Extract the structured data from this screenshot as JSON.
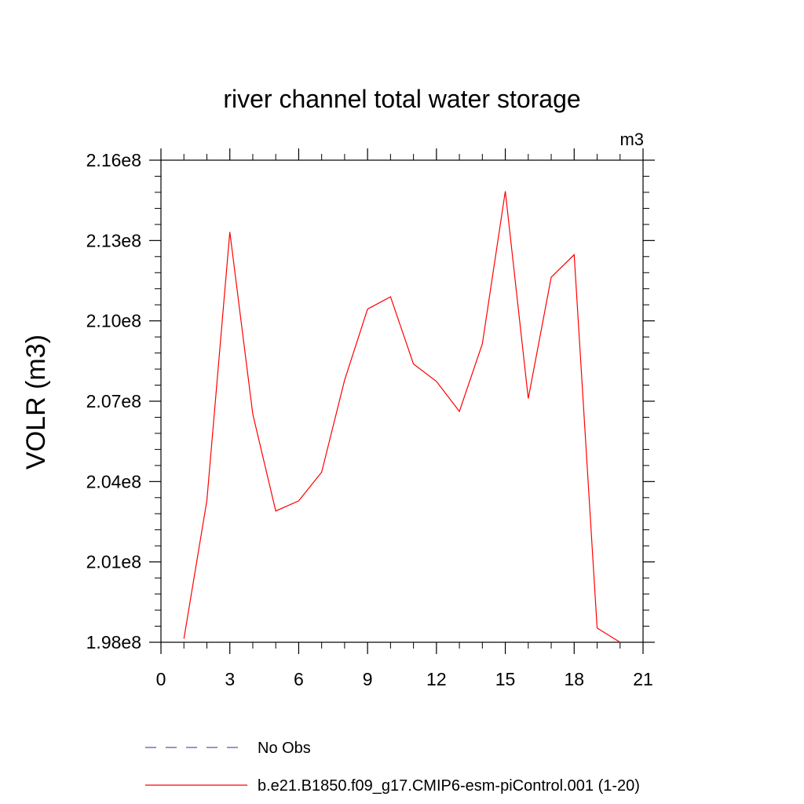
{
  "chart_data": {
    "type": "line",
    "title": "river channel total water storage",
    "ylabel": "VOLR  (m3)",
    "xlabel": "",
    "units": "m3",
    "xlim": [
      0,
      21
    ],
    "ylim": [
      198000000.0,
      216000000.0
    ],
    "x_ticks": [
      0,
      3,
      6,
      9,
      12,
      15,
      18,
      21
    ],
    "x_tick_labels": [
      "0",
      "3",
      "6",
      "9",
      "12",
      "15",
      "18",
      "21"
    ],
    "y_ticks": [
      198000000.0,
      201000000.0,
      204000000.0,
      207000000.0,
      210000000.0,
      213000000.0,
      216000000.0
    ],
    "y_tick_labels": [
      "1.98e8",
      "2.01e8",
      "2.04e8",
      "2.07e8",
      "2.10e8",
      "2.13e8",
      "2.16e8"
    ],
    "grid": false,
    "legend_position": "bottom",
    "series": [
      {
        "name": "No Obs",
        "color": "#5555bb",
        "dash": "dashed",
        "x": [],
        "values": []
      },
      {
        "name": "b.e21.B1850.f09_g17.CMIP6-esm-piControl.001 (1-20)",
        "color": "#ff0000",
        "dash": "solid",
        "x": [
          1,
          2,
          3,
          4,
          5,
          6,
          7,
          8,
          9,
          10,
          11,
          12,
          13,
          14,
          15,
          16,
          17,
          18,
          19,
          20
        ],
        "values": [
          198130000.0,
          203290000.0,
          213320000.0,
          206520000.0,
          202900000.0,
          203280000.0,
          204350000.0,
          207790000.0,
          210440000.0,
          210900000.0,
          208390000.0,
          207740000.0,
          206620000.0,
          209140000.0,
          214840000.0,
          207100000.0,
          211630000.0,
          212470000.0,
          198530000.0,
          198000000.0
        ]
      }
    ]
  }
}
